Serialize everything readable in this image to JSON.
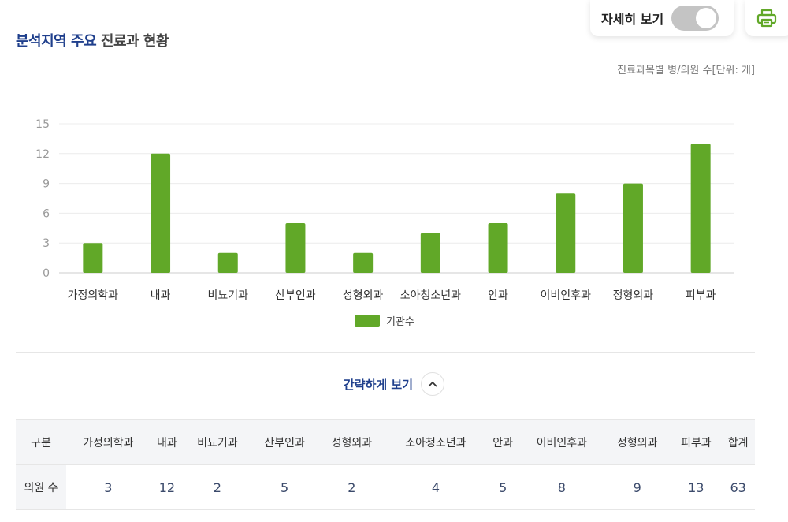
{
  "header": {
    "title_accent": "분석지역 주요",
    "title_rest": "진료과 현황",
    "detail_toggle_label": "자세히 보기",
    "detail_toggle_on": false,
    "print_icon": "printer-icon",
    "unit_note": "진료과목별 병/의원 수[단위: 개]"
  },
  "colors": {
    "bar": "#61a828",
    "accent": "#1f3f8c",
    "print_icon": "#61a828"
  },
  "chart_data": {
    "type": "bar",
    "categories": [
      "가정의학과",
      "내과",
      "비뇨기과",
      "산부인과",
      "성형외과",
      "소아청소년과",
      "안과",
      "이비인후과",
      "정형외과",
      "피부과"
    ],
    "series": [
      {
        "name": "기관수",
        "values": [
          3,
          12,
          2,
          5,
          2,
          4,
          5,
          8,
          9,
          13
        ]
      }
    ],
    "yticks": [
      0,
      3,
      6,
      9,
      12,
      15
    ],
    "ylim": [
      0,
      15
    ],
    "grid": true,
    "legend": "bottom-center"
  },
  "simple_view": {
    "label": "간략하게 보기",
    "icon": "chevron-up-icon"
  },
  "table": {
    "headers": [
      "구분",
      "가정의학과",
      "내과",
      "비뇨기과",
      "산부인과",
      "성형외과",
      "소아청소년과",
      "안과",
      "이비인후과",
      "정형외과",
      "피부과",
      "합계"
    ],
    "row_label": "의원 수",
    "values": [
      "3",
      "12",
      "2",
      "5",
      "2",
      "4",
      "5",
      "8",
      "9",
      "13",
      "63"
    ]
  }
}
